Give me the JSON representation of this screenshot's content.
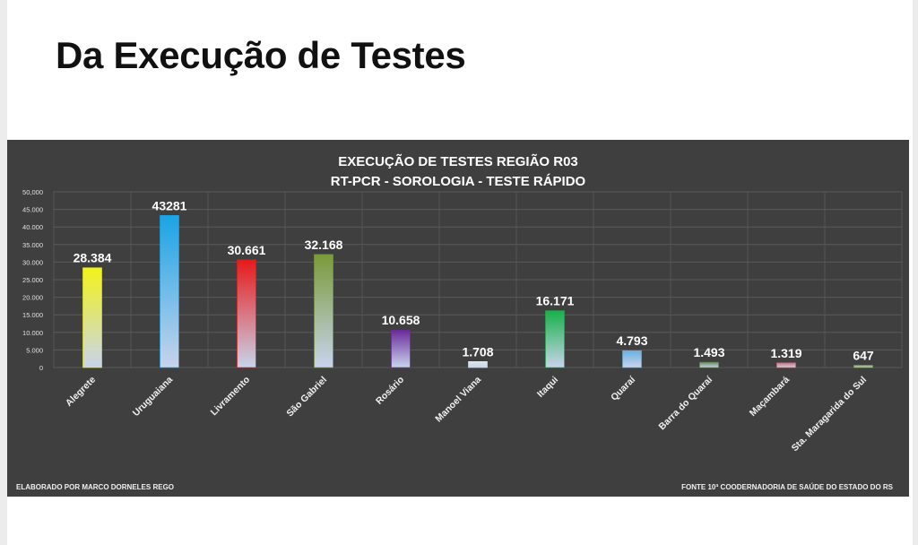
{
  "page": {
    "title": "Da Execução de Testes"
  },
  "chart_data": {
    "type": "bar",
    "title": "EXECUÇÃO DE TESTES REGIÃO R03",
    "subtitle": "RT-PCR - SOROLOGIA - TESTE RÁPIDO",
    "xlabel": "",
    "ylabel": "",
    "ylim": [
      0,
      50000
    ],
    "y_ticks": [
      "0",
      "5.000",
      "10.000",
      "15.000",
      "20.000",
      "25.000",
      "30.000",
      "35.000",
      "40.000",
      "45.000",
      "50,000"
    ],
    "grid": true,
    "categories": [
      "Alegrete",
      "Uruguaiana",
      "Livramento",
      "São Gabriel",
      "Rosário",
      "Manoel Viana",
      "Itaqui",
      "Quaraí",
      "Barra do Quaraí",
      "Maçambará",
      "Sta. Maragarida do Sul"
    ],
    "values": [
      28384,
      43281,
      30661,
      32168,
      10658,
      1708,
      16171,
      4793,
      1493,
      1319,
      647
    ],
    "data_labels": [
      "28.384",
      "43281",
      "30.661",
      "32.168",
      "10.658",
      "1.708",
      "16.171",
      "4.793",
      "1.493",
      "1.319",
      "647"
    ],
    "bar_top_colors": [
      "#f2f21a",
      "#1aa3e6",
      "#e61a1a",
      "#7a9a3a",
      "#6a2a9a",
      "#dde6ee",
      "#18b04a",
      "#6ab0e0",
      "#6a8a5a",
      "#d0707a",
      "#7aa04a"
    ],
    "bar_bottom_color": "#c8d4ec"
  },
  "footer": {
    "left": "ELABORADO POR MARCO DORNELES REGO",
    "right": "FONTE 10ª COODERNADORIA DE SAÚDE DO ESTADO DO RS"
  }
}
